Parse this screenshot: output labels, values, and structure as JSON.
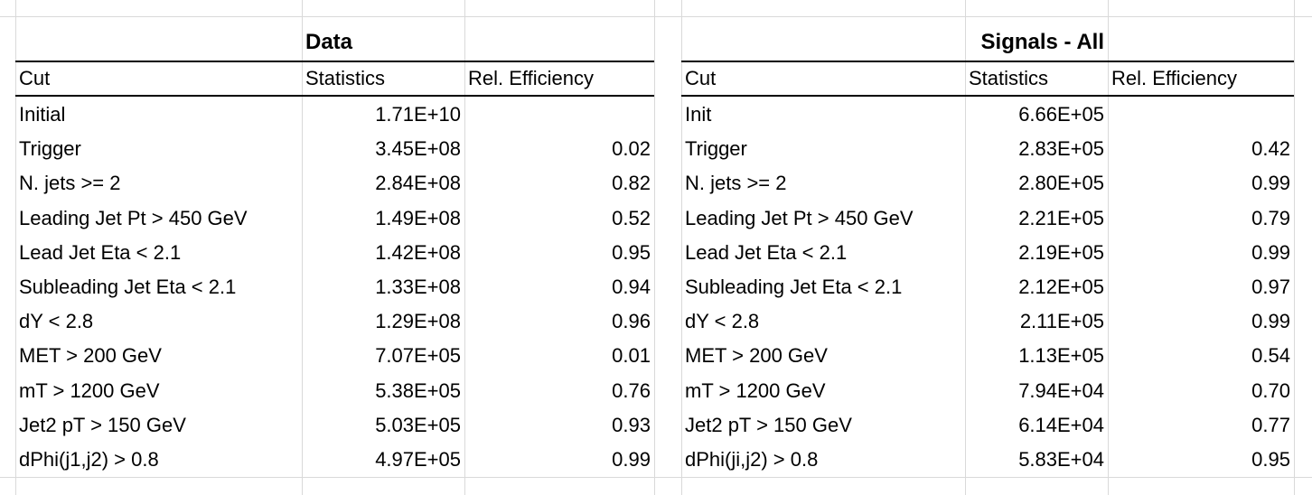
{
  "tables": [
    {
      "title": "Data",
      "headers": [
        "Cut",
        "Statistics",
        "Rel. Efficiency"
      ],
      "rows": [
        [
          "Initial",
          "1.71E+10",
          ""
        ],
        [
          "Trigger",
          "3.45E+08",
          "0.02"
        ],
        [
          "N. jets >= 2",
          "2.84E+08",
          "0.82"
        ],
        [
          "Leading Jet Pt > 450 GeV",
          "1.49E+08",
          "0.52"
        ],
        [
          "Lead Jet Eta < 2.1",
          "1.42E+08",
          "0.95"
        ],
        [
          "Subleading Jet Eta < 2.1",
          "1.33E+08",
          "0.94"
        ],
        [
          "dY < 2.8",
          "1.29E+08",
          "0.96"
        ],
        [
          "MET > 200 GeV",
          "7.07E+05",
          "0.01"
        ],
        [
          "mT > 1200 GeV",
          "5.38E+05",
          "0.76"
        ],
        [
          "Jet2 pT > 150 GeV",
          "5.03E+05",
          "0.93"
        ],
        [
          "dPhi(j1,j2) > 0.8",
          "4.97E+05",
          "0.99"
        ]
      ]
    },
    {
      "title": "Signals - All",
      "headers": [
        "Cut",
        "Statistics",
        "Rel. Efficiency"
      ],
      "rows": [
        [
          "Init",
          "6.66E+05",
          ""
        ],
        [
          "Trigger",
          "2.83E+05",
          "0.42"
        ],
        [
          "N. jets >= 2",
          "2.80E+05",
          "0.99"
        ],
        [
          "Leading Jet Pt > 450 GeV",
          "2.21E+05",
          "0.79"
        ],
        [
          "Lead Jet Eta < 2.1",
          "2.19E+05",
          "0.99"
        ],
        [
          "Subleading Jet Eta < 2.1",
          "2.12E+05",
          "0.97"
        ],
        [
          "dY < 2.8",
          "2.11E+05",
          "0.99"
        ],
        [
          "MET > 200 GeV",
          "1.13E+05",
          "0.54"
        ],
        [
          "mT > 1200 GeV",
          "7.94E+04",
          "0.70"
        ],
        [
          "Jet2 pT > 150 GeV",
          "6.14E+04",
          "0.77"
        ],
        [
          "dPhi(ji,j2) > 0.8",
          "5.83E+04",
          "0.95"
        ]
      ]
    }
  ]
}
